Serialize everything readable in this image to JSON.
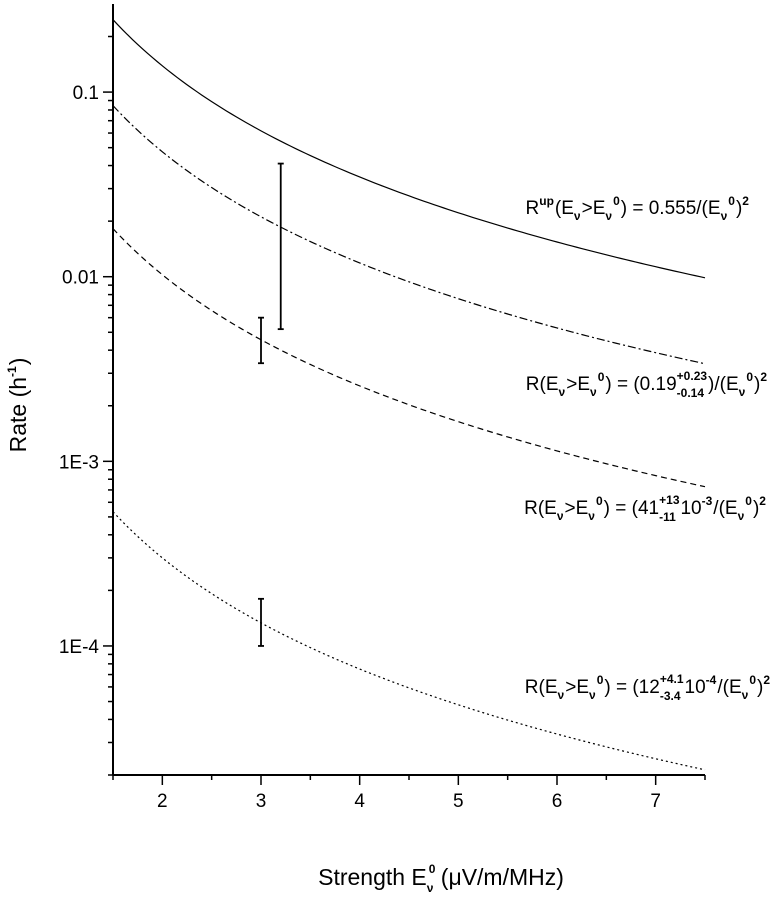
{
  "chart_data": {
    "type": "line",
    "x_scale": "linear",
    "y_scale": "log",
    "xlim": [
      1.5,
      7.5
    ],
    "ylim": [
      2e-05,
      0.3
    ],
    "grid": false,
    "x_ticks": [
      2,
      3,
      4,
      5,
      6,
      7
    ],
    "x_tick_labels": [
      "2",
      "3",
      "4",
      "5",
      "6",
      "7"
    ],
    "y_ticks": [
      0.0001,
      0.001,
      0.01,
      0.1
    ],
    "y_tick_labels": [
      "1E-4",
      "1E-3",
      "0.01",
      "0.1"
    ],
    "xlabel": {
      "main": "Strength E",
      "sub": "ν",
      "sup": "0",
      "units": "(μV/m/MHz)"
    },
    "ylabel": {
      "main": "Rate  (h",
      "sup": "-1",
      "close": ")"
    },
    "series": [
      {
        "style": "solid",
        "coefficient": 0.555,
        "x": [
          1.5,
          2,
          2.5,
          3,
          3.5,
          4,
          4.5,
          5,
          5.5,
          6,
          6.5,
          7,
          7.5
        ],
        "y": [
          0.2467,
          0.1388,
          0.0888,
          0.0617,
          0.0453,
          0.0347,
          0.0274,
          0.0222,
          0.0183,
          0.0154,
          0.0131,
          0.0113,
          0.00987
        ]
      },
      {
        "style": "dash-dot",
        "coefficient": 0.19,
        "x": [
          1.5,
          2,
          2.5,
          3,
          3.5,
          4,
          4.5,
          5,
          5.5,
          6,
          6.5,
          7,
          7.5
        ],
        "y": [
          0.0844,
          0.0475,
          0.0304,
          0.0211,
          0.0155,
          0.0119,
          0.00938,
          0.0076,
          0.00628,
          0.00528,
          0.0045,
          0.00388,
          0.00338
        ],
        "error_bar": {
          "x": 3.2,
          "y_low": 0.0052,
          "y_high": 0.041
        }
      },
      {
        "style": "dashed",
        "coefficient": 0.041,
        "x": [
          1.5,
          2,
          2.5,
          3,
          3.5,
          4,
          4.5,
          5,
          5.5,
          6,
          6.5,
          7,
          7.5
        ],
        "y": [
          0.0182,
          0.01025,
          0.00656,
          0.00456,
          0.00335,
          0.00256,
          0.00202,
          0.00164,
          0.00136,
          0.00114,
          0.00097,
          0.00084,
          0.00073
        ],
        "error_bar": {
          "x": 3.0,
          "y_low": 0.0034,
          "y_high": 0.006
        }
      },
      {
        "style": "dotted",
        "coefficient": 0.0012,
        "x": [
          1.5,
          2,
          2.5,
          3,
          3.5,
          4,
          4.5,
          5,
          5.5,
          6,
          6.5,
          7,
          7.5
        ],
        "y": [
          0.000533,
          0.0003,
          0.000192,
          0.000133,
          9.8e-05,
          7.5e-05,
          5.93e-05,
          4.8e-05,
          3.97e-05,
          3.33e-05,
          2.84e-05,
          2.45e-05,
          2.13e-05
        ],
        "error_bar": {
          "x": 3.0,
          "y_low": 0.0001,
          "y_high": 0.00018
        }
      }
    ],
    "annotations": [
      {
        "anchor_series": 0,
        "parts": [
          {
            "t": "R"
          },
          {
            "t": "up",
            "k": "sup"
          },
          {
            "t": "(E"
          },
          {
            "t": "ν",
            "k": "sub"
          },
          {
            "t": ">E"
          },
          {
            "t": "ν",
            "k": "sub"
          },
          {
            "t": "0",
            "k": "sup"
          },
          {
            "t": ") = 0.555/(E"
          },
          {
            "t": "ν",
            "k": "sub"
          },
          {
            "t": "0",
            "k": "sup"
          },
          {
            "t": ")"
          },
          {
            "t": "2",
            "k": "sup"
          }
        ]
      },
      {
        "anchor_series": 1,
        "parts": [
          {
            "t": "R(E"
          },
          {
            "t": "ν",
            "k": "sub"
          },
          {
            "t": ">E"
          },
          {
            "t": "ν",
            "k": "sub"
          },
          {
            "t": "0",
            "k": "sup"
          },
          {
            "t": ") = (0.19"
          },
          {
            "t": "+0.23",
            "b": "-0.14",
            "k": "supsub"
          },
          {
            "t": ")/(E"
          },
          {
            "t": "ν",
            "k": "sub"
          },
          {
            "t": "0",
            "k": "sup"
          },
          {
            "t": ")"
          },
          {
            "t": "2",
            "k": "sup"
          }
        ]
      },
      {
        "anchor_series": 2,
        "parts": [
          {
            "t": "R(E"
          },
          {
            "t": "ν",
            "k": "sub"
          },
          {
            "t": ">E"
          },
          {
            "t": "ν",
            "k": "sub"
          },
          {
            "t": "0",
            "k": "sup"
          },
          {
            "t": ") = (41"
          },
          {
            "t": "+13",
            "b": "-11",
            "k": "supsub"
          },
          {
            "t": "10"
          },
          {
            "t": "-3",
            "k": "sup"
          },
          {
            "t": "/(E"
          },
          {
            "t": "ν",
            "k": "sub"
          },
          {
            "t": "0",
            "k": "sup"
          },
          {
            "t": ")"
          },
          {
            "t": "2",
            "k": "sup"
          }
        ]
      },
      {
        "anchor_series": 3,
        "parts": [
          {
            "t": "R(E"
          },
          {
            "t": "ν",
            "k": "sub"
          },
          {
            "t": ">E"
          },
          {
            "t": "ν",
            "k": "sub"
          },
          {
            "t": "0",
            "k": "sup"
          },
          {
            "t": ") = (12"
          },
          {
            "t": "+4.1",
            "b": "-3.4",
            "k": "supsub"
          },
          {
            "t": "10"
          },
          {
            "t": "-4",
            "k": "sup"
          },
          {
            "t": "/(E"
          },
          {
            "t": "ν",
            "k": "sub"
          },
          {
            "t": "0",
            "k": "sup"
          },
          {
            "t": ")"
          },
          {
            "t": "2",
            "k": "sup"
          }
        ]
      }
    ]
  }
}
